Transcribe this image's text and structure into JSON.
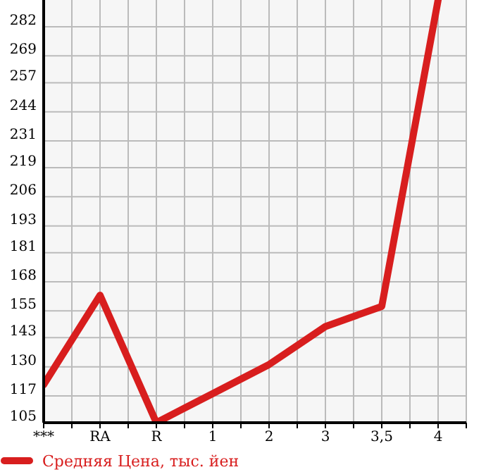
{
  "chart_data": {
    "type": "line",
    "categories": [
      "***",
      "RA",
      "R",
      "1",
      "2",
      "3",
      "3,5",
      "4"
    ],
    "series": [
      {
        "name": "Средняя Цена, тыс. йен",
        "color": "#d81e1e",
        "values": [
          122,
          162,
          105,
          118,
          131,
          148,
          157,
          294
        ]
      }
    ],
    "ylim": [
      105,
      294
    ],
    "yticks": [
      105,
      117,
      130,
      143,
      155,
      168,
      181,
      193,
      206,
      219,
      231,
      244,
      257,
      269,
      282
    ],
    "grid": true,
    "legend": "bottom left",
    "marker": "none",
    "line_style": "solid"
  }
}
